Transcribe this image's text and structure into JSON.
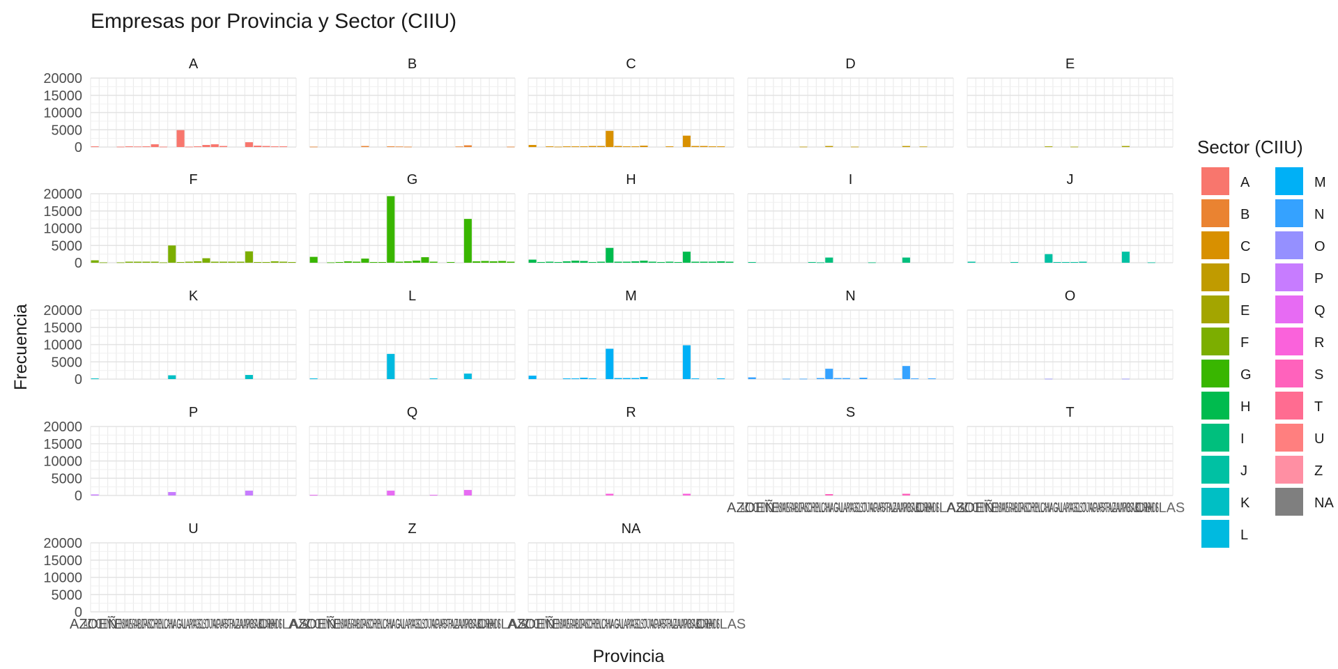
{
  "chart_data": {
    "type": "bar",
    "title": "Empresas por Provincia y Sector (CIIU)",
    "xlabel": "Provincia",
    "ylabel": "Frecuencia",
    "ylim": [
      0,
      20000
    ],
    "yticks": [
      0,
      5000,
      10000,
      15000,
      20000
    ],
    "grid": true,
    "legend_title": "Sector (CIIU)",
    "legend_placement": "right",
    "x_tick_label_text": "AZOEÑ... CHILAS (24 overlapping province names, illegible)",
    "x_tick_label_fragment": "CHILAS",
    "provinces_count": 24,
    "colors": {
      "A": "#F8766D",
      "B": "#EA8331",
      "C": "#D89000",
      "D": "#C09B00",
      "E": "#A3A500",
      "F": "#7CAE00",
      "G": "#39B600",
      "H": "#00BB4E",
      "I": "#00BF7D",
      "J": "#00C1A3",
      "K": "#00BFC4",
      "L": "#00BAE0",
      "M": "#00B0F6",
      "N": "#35A2FF",
      "O": "#9590FF",
      "P": "#C77CFF",
      "Q": "#E76BF3",
      "R": "#FA62DB",
      "S": "#FF62BC",
      "T": "#FF6C91",
      "U": "#FF7F7F",
      "Z": "#FF8FA3",
      "NA": "#7F7F7F"
    },
    "panels": [
      {
        "sector": "A",
        "values": [
          200,
          0,
          0,
          100,
          200,
          150,
          200,
          800,
          100,
          0,
          4900,
          100,
          200,
          600,
          800,
          300,
          0,
          0,
          1400,
          400,
          300,
          200,
          200,
          0
        ]
      },
      {
        "sector": "B",
        "values": [
          100,
          0,
          0,
          0,
          0,
          0,
          300,
          0,
          0,
          200,
          150,
          100,
          0,
          0,
          0,
          0,
          0,
          150,
          500,
          0,
          0,
          0,
          0,
          100
        ]
      },
      {
        "sector": "C",
        "values": [
          600,
          0,
          200,
          100,
          200,
          200,
          200,
          300,
          300,
          4700,
          300,
          200,
          200,
          400,
          0,
          0,
          200,
          0,
          3300,
          300,
          300,
          200,
          200,
          0
        ]
      },
      {
        "sector": "D",
        "values": [
          0,
          0,
          0,
          0,
          0,
          0,
          100,
          0,
          0,
          300,
          0,
          0,
          100,
          0,
          0,
          0,
          0,
          0,
          300,
          0,
          150,
          0,
          0,
          0
        ]
      },
      {
        "sector": "E",
        "values": [
          0,
          0,
          0,
          0,
          0,
          0,
          0,
          0,
          0,
          200,
          0,
          0,
          100,
          0,
          0,
          0,
          0,
          0,
          300,
          0,
          0,
          0,
          0,
          0
        ]
      },
      {
        "sector": "F",
        "values": [
          700,
          100,
          0,
          100,
          300,
          300,
          300,
          300,
          100,
          5000,
          200,
          300,
          400,
          1300,
          300,
          300,
          300,
          300,
          3300,
          200,
          200,
          400,
          300,
          200
        ]
      },
      {
        "sector": "G",
        "values": [
          1700,
          0,
          100,
          200,
          400,
          300,
          1200,
          200,
          200,
          19300,
          300,
          400,
          600,
          1600,
          300,
          0,
          200,
          0,
          12700,
          400,
          500,
          400,
          500,
          300
        ]
      },
      {
        "sector": "H",
        "values": [
          900,
          200,
          300,
          200,
          400,
          600,
          500,
          200,
          300,
          4300,
          300,
          300,
          400,
          600,
          300,
          200,
          300,
          200,
          3200,
          300,
          300,
          300,
          400,
          300
        ]
      },
      {
        "sector": "I",
        "values": [
          200,
          0,
          0,
          0,
          0,
          0,
          0,
          200,
          100,
          1500,
          0,
          0,
          0,
          0,
          100,
          0,
          0,
          0,
          1500,
          0,
          0,
          0,
          0,
          0
        ]
      },
      {
        "sector": "J",
        "values": [
          300,
          0,
          0,
          0,
          0,
          200,
          0,
          0,
          0,
          2500,
          200,
          200,
          200,
          300,
          0,
          0,
          0,
          0,
          3200,
          0,
          0,
          100,
          0,
          0
        ]
      },
      {
        "sector": "K",
        "values": [
          200,
          0,
          0,
          0,
          0,
          0,
          0,
          0,
          0,
          1100,
          0,
          0,
          0,
          0,
          0,
          0,
          0,
          0,
          1200,
          0,
          0,
          0,
          0,
          0
        ]
      },
      {
        "sector": "L",
        "values": [
          200,
          0,
          0,
          0,
          0,
          0,
          0,
          0,
          0,
          7300,
          0,
          0,
          0,
          0,
          200,
          0,
          0,
          0,
          1600,
          0,
          0,
          0,
          0,
          0
        ]
      },
      {
        "sector": "M",
        "values": [
          1000,
          0,
          0,
          0,
          200,
          200,
          400,
          200,
          0,
          8800,
          300,
          300,
          300,
          600,
          0,
          0,
          0,
          0,
          9800,
          200,
          0,
          0,
          200,
          0
        ]
      },
      {
        "sector": "N",
        "values": [
          500,
          0,
          0,
          0,
          100,
          0,
          100,
          0,
          300,
          3000,
          300,
          300,
          0,
          400,
          0,
          0,
          0,
          100,
          3800,
          200,
          0,
          200,
          0,
          0
        ]
      },
      {
        "sector": "O",
        "values": [
          0,
          0,
          0,
          0,
          0,
          0,
          0,
          0,
          0,
          100,
          0,
          0,
          0,
          0,
          0,
          0,
          0,
          0,
          100,
          0,
          0,
          0,
          0,
          0
        ]
      },
      {
        "sector": "P",
        "values": [
          300,
          0,
          0,
          0,
          0,
          0,
          0,
          0,
          0,
          1000,
          0,
          0,
          0,
          0,
          0,
          0,
          0,
          0,
          1400,
          0,
          0,
          0,
          0,
          0
        ]
      },
      {
        "sector": "Q",
        "values": [
          200,
          0,
          0,
          0,
          0,
          0,
          0,
          0,
          0,
          1400,
          0,
          0,
          0,
          0,
          200,
          0,
          0,
          0,
          1600,
          0,
          0,
          0,
          0,
          0
        ]
      },
      {
        "sector": "R",
        "values": [
          0,
          0,
          0,
          0,
          0,
          0,
          0,
          0,
          0,
          500,
          0,
          0,
          0,
          0,
          0,
          0,
          0,
          0,
          500,
          0,
          0,
          0,
          0,
          0
        ]
      },
      {
        "sector": "S",
        "values": [
          0,
          0,
          0,
          0,
          0,
          0,
          0,
          0,
          0,
          400,
          0,
          0,
          0,
          0,
          0,
          0,
          0,
          0,
          500,
          0,
          0,
          0,
          0,
          0
        ]
      },
      {
        "sector": "T",
        "values": [
          0,
          0,
          0,
          0,
          0,
          0,
          0,
          0,
          0,
          0,
          0,
          0,
          0,
          0,
          0,
          0,
          0,
          0,
          0,
          0,
          0,
          0,
          0,
          0
        ]
      },
      {
        "sector": "U",
        "values": [
          0,
          0,
          0,
          0,
          0,
          0,
          0,
          0,
          0,
          0,
          0,
          0,
          0,
          0,
          0,
          0,
          0,
          0,
          0,
          0,
          0,
          0,
          0,
          0
        ]
      },
      {
        "sector": "Z",
        "values": [
          0,
          0,
          0,
          0,
          0,
          0,
          0,
          0,
          0,
          0,
          0,
          0,
          0,
          0,
          0,
          0,
          0,
          0,
          0,
          0,
          0,
          0,
          0,
          0
        ]
      },
      {
        "sector": "NA",
        "values": [
          0,
          0,
          0,
          0,
          0,
          0,
          0,
          0,
          0,
          0,
          0,
          0,
          0,
          0,
          0,
          0,
          0,
          0,
          0,
          0,
          0,
          0,
          0,
          0
        ]
      }
    ]
  }
}
